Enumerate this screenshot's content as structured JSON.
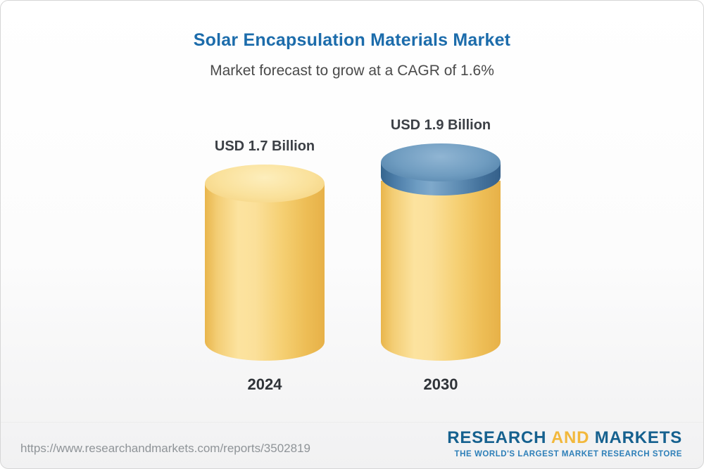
{
  "header": {
    "title": "Solar Encapsulation Materials Market",
    "subtitle": "Market forecast to grow at a CAGR of 1.6%"
  },
  "chart_data": {
    "type": "bar",
    "title": "Solar Encapsulation Materials Market",
    "subtitle": "Market forecast to grow at a CAGR of 1.6%",
    "categories": [
      "2024",
      "2030"
    ],
    "values": [
      1.7,
      1.9
    ],
    "unit": "USD Billion",
    "cagr_percent": 1.6,
    "legend": false,
    "grid": false,
    "bars": [
      {
        "year": "2024",
        "value": 1.7,
        "label": "USD 1.7 Billion",
        "color": "#F6CE6E"
      },
      {
        "year": "2030",
        "value": 1.9,
        "label": "USD 1.9 Billion",
        "base_color": "#F6CE6E",
        "growth_color": "#4C7CA4"
      }
    ]
  },
  "footer": {
    "url": "https://www.researchandmarkets.com/reports/3502819",
    "logo": {
      "research": "RESEARCH",
      "and": "AND",
      "markets": "MARKETS",
      "tagline": "THE WORLD'S LARGEST MARKET RESEARCH STORE"
    }
  },
  "colors": {
    "title_blue": "#1C6CAB",
    "subtitle_gray": "#4A4A4A",
    "cylinder_yellow": "#F6CE6E",
    "cylinder_blue": "#4C7CA4",
    "logo_blue": "#16618F",
    "logo_gold": "#F2B83C",
    "tagline_blue": "#2D7FB8"
  }
}
